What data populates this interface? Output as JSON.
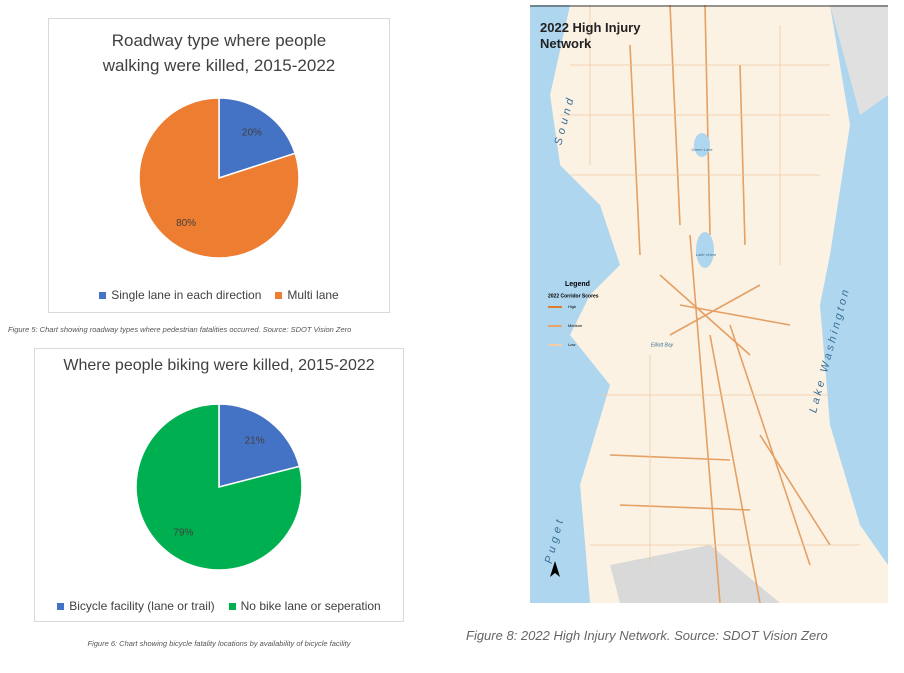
{
  "chart_data": [
    {
      "type": "pie",
      "title": "Roadway type where people walking were killed, 2015-2022",
      "categories": [
        "Single lane in each direction",
        "Multi lane"
      ],
      "values": [
        20,
        80
      ],
      "value_labels": [
        "20%",
        "80%"
      ],
      "colors": [
        "#4472c4",
        "#ed7d31"
      ]
    },
    {
      "type": "pie",
      "title": "Where people biking were killed, 2015-2022",
      "categories": [
        "Bicycle facility (lane or trail)",
        "No bike lane or seperation"
      ],
      "values": [
        21,
        79
      ],
      "value_labels": [
        "21%",
        "79%"
      ],
      "colors": [
        "#4472c4",
        "#00b050"
      ]
    }
  ],
  "captions": [
    "Figure 5: Chart showing roadway types where pedestrian fatalities occurred. Source: SDOT Vision Zero",
    "Figure 6: Chart showing bicycle fatality locations by availability of bicycle facility",
    "Figure 8: 2022 High Injury Network. Source: SDOT Vision Zero"
  ],
  "map": {
    "title": "2022 High Injury Network",
    "legend_title": "Legend",
    "legend_subtitle": "2022 Corridor Scores",
    "legend_items": [
      "High",
      "Medium",
      "Low"
    ],
    "labels": [
      "Sound",
      "Puget",
      "Lake Washington",
      "Elliott Bay",
      "Green Lake",
      "Lake Union"
    ]
  }
}
